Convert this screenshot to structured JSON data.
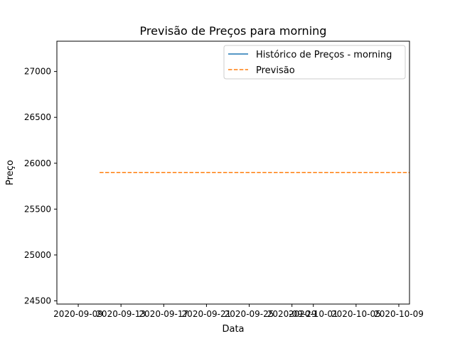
{
  "chart_data": {
    "type": "line",
    "title": "Previsão de Preços para morning",
    "xlabel": "Data",
    "ylabel": "Preço",
    "xlim": [
      "2020-09-07",
      "2020-10-10"
    ],
    "ylim": [
      24465,
      27330
    ],
    "x_ticks": [
      "2020-09-09",
      "2020-09-13",
      "2020-09-17",
      "2020-09-21",
      "2020-09-25",
      "2020-09-29",
      "2020-10-01",
      "2020-10-05",
      "2020-10-09"
    ],
    "y_ticks": [
      24500,
      25000,
      25500,
      26000,
      26500,
      27000
    ],
    "series": [
      {
        "name": "Histórico de Preços - morning",
        "color": "#1f77b4",
        "style": "solid",
        "x": [],
        "y": []
      },
      {
        "name": "Previsão",
        "color": "#ff7f0e",
        "style": "dashed",
        "x": [
          "2020-09-11",
          "2020-10-10"
        ],
        "y": [
          25900,
          25900
        ]
      }
    ],
    "legend": {
      "position": "top-right"
    },
    "grid": false
  }
}
